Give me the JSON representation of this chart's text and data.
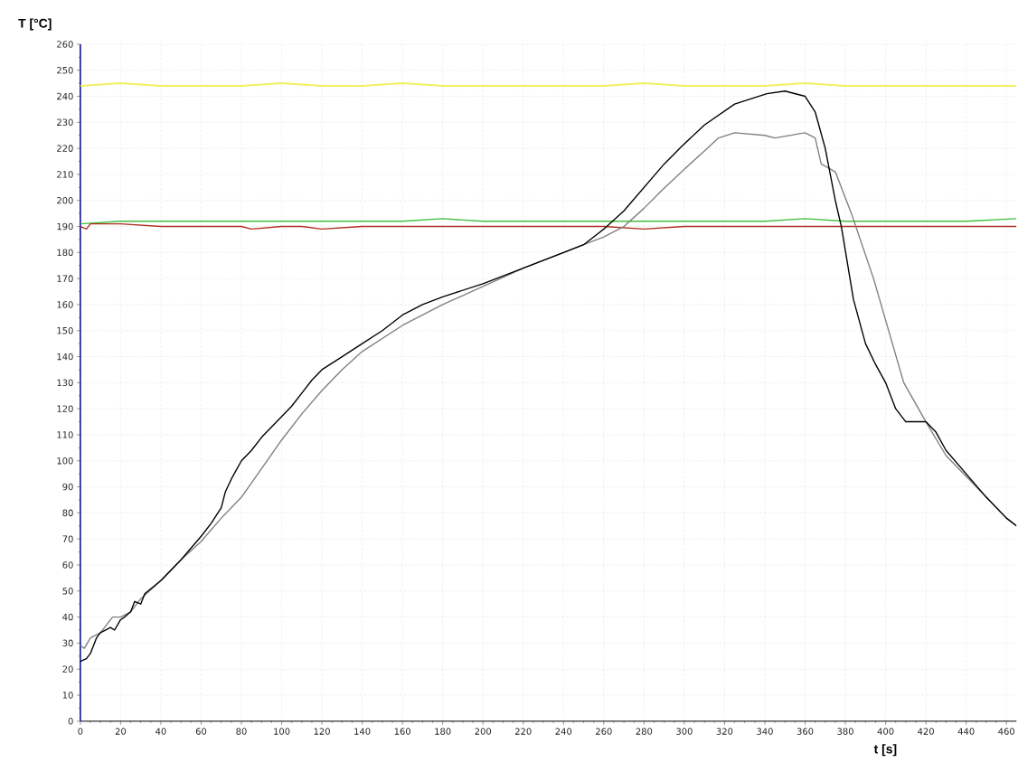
{
  "chart_data": {
    "type": "line",
    "xlabel": "t [s]",
    "ylabel": "T [°C]",
    "xlim": [
      0,
      465
    ],
    "ylim": [
      0,
      260
    ],
    "xticks": [
      0,
      20,
      40,
      60,
      80,
      100,
      120,
      140,
      160,
      180,
      200,
      220,
      240,
      260,
      280,
      300,
      320,
      340,
      360,
      380,
      400,
      420,
      440,
      460
    ],
    "yticks": [
      0,
      10,
      20,
      30,
      40,
      50,
      60,
      70,
      80,
      90,
      100,
      110,
      120,
      130,
      140,
      150,
      160,
      170,
      180,
      190,
      200,
      210,
      220,
      230,
      240,
      250,
      260
    ],
    "grid": true,
    "series": [
      {
        "color": "#f0f060",
        "x": [
          0,
          20,
          40,
          60,
          80,
          100,
          120,
          140,
          160,
          180,
          200,
          220,
          240,
          260,
          280,
          300,
          320,
          340,
          360,
          380,
          400,
          420,
          440,
          465
        ],
        "values": [
          244,
          245,
          244,
          244,
          244,
          245,
          244,
          244,
          245,
          244,
          244,
          244,
          244,
          244,
          245,
          244,
          244,
          244,
          245,
          244,
          244,
          244,
          244,
          244
        ]
      },
      {
        "color": "#40c040",
        "x": [
          0,
          20,
          40,
          60,
          80,
          100,
          120,
          140,
          160,
          180,
          200,
          220,
          240,
          260,
          280,
          300,
          320,
          340,
          360,
          380,
          400,
          420,
          440,
          465
        ],
        "values": [
          191,
          192,
          192,
          192,
          192,
          192,
          192,
          192,
          192,
          193,
          192,
          192,
          192,
          192,
          192,
          192,
          192,
          192,
          193,
          192,
          192,
          192,
          192,
          193
        ]
      },
      {
        "color": "#b03020",
        "x": [
          0,
          3,
          5,
          20,
          40,
          60,
          80,
          85,
          100,
          110,
          120,
          140,
          160,
          180,
          200,
          220,
          240,
          260,
          280,
          300,
          320,
          340,
          360,
          380,
          400,
          420,
          440,
          465
        ],
        "values": [
          190,
          189,
          191,
          191,
          190,
          190,
          190,
          189,
          190,
          190,
          189,
          190,
          190,
          190,
          190,
          190,
          190,
          190,
          189,
          190,
          190,
          190,
          190,
          190,
          190,
          190,
          190,
          190
        ]
      },
      {
        "color": "#808080",
        "x": [
          0,
          2,
          5,
          10,
          16,
          20,
          25,
          30,
          40,
          50,
          60,
          70,
          80,
          90,
          100,
          110,
          120,
          130,
          140,
          160,
          180,
          200,
          220,
          240,
          250,
          260,
          270,
          280,
          289,
          300,
          310,
          317,
          325,
          340,
          345,
          360,
          365,
          368,
          375,
          383,
          394,
          409,
          420,
          430,
          440,
          450,
          460,
          465
        ],
        "values": [
          29,
          28,
          32,
          34,
          40,
          40,
          42,
          47,
          54,
          62,
          69,
          78,
          86,
          97,
          108,
          118,
          127,
          135,
          142,
          152,
          160,
          167,
          174,
          180,
          183,
          186,
          190,
          197,
          204,
          212,
          219,
          224,
          226,
          225,
          224,
          226,
          224,
          214,
          211,
          195,
          170,
          130,
          115,
          102,
          94,
          86,
          78,
          75
        ]
      },
      {
        "color": "#000000",
        "x": [
          0,
          3,
          5,
          8,
          10,
          15,
          17,
          20,
          22,
          25,
          27,
          30,
          32,
          40,
          50,
          60,
          65,
          70,
          72,
          75,
          80,
          85,
          90,
          100,
          105,
          110,
          115,
          120,
          130,
          140,
          150,
          160,
          170,
          180,
          200,
          220,
          240,
          250,
          260,
          270,
          280,
          290,
          299,
          310,
          325,
          341,
          350,
          360,
          365,
          370,
          375,
          378,
          384,
          390,
          395,
          400,
          405,
          410,
          420,
          425,
          430,
          440,
          450,
          460,
          465
        ],
        "values": [
          23,
          24,
          26,
          32,
          34,
          36,
          35,
          39,
          40,
          42,
          46,
          45,
          49,
          54,
          62,
          71,
          76,
          82,
          88,
          93,
          100,
          104,
          109,
          117,
          121,
          126,
          131,
          135,
          140,
          145,
          150,
          156,
          160,
          163,
          168,
          174,
          180,
          183,
          189,
          196,
          205,
          214,
          221,
          229,
          237,
          241,
          242,
          240,
          234,
          220,
          200,
          190,
          162,
          145,
          137,
          130,
          120,
          115,
          115,
          111,
          104,
          95,
          86,
          78,
          75
        ]
      }
    ]
  }
}
